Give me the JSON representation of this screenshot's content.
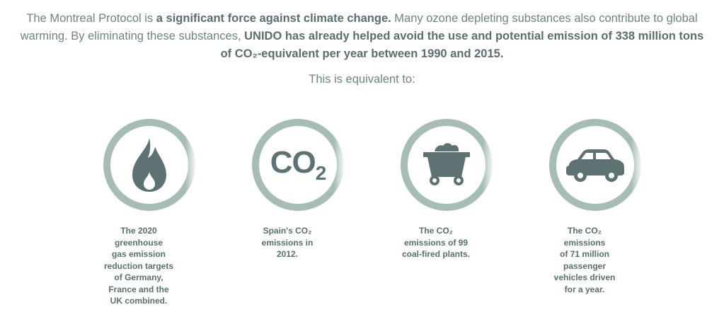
{
  "intro": {
    "p1": "The Montreal Protocol is ",
    "b1": "a significant force against climate change.",
    "p2": " Many ozone depleting substances also contribute to global warming. By eliminating these substances, ",
    "b2": "UNIDO has already helped avoid the use and potential emission of 338 million tons of CO₂-equivalent per year between 1990 and 2015."
  },
  "equivalent_label": "This is equivalent to:",
  "items": [
    {
      "icon": "flame-icon",
      "caption": [
        "The 2020",
        "greenhouse",
        "gas emission",
        "reduction targets",
        "of Germany,",
        "France and the",
        "UK combined."
      ]
    },
    {
      "icon": "co2-icon",
      "icon_text": "CO",
      "icon_sub": "2",
      "caption": [
        "Spain's CO₂",
        "emissions in",
        "2012."
      ]
    },
    {
      "icon": "coal-cart-icon",
      "caption": [
        "The CO₂",
        "emissions of 99",
        "coal-fired plants."
      ]
    },
    {
      "icon": "car-icon",
      "caption": [
        "The CO₂",
        "emissions",
        "of 71 million",
        "passenger",
        "vehicles driven",
        "for a year."
      ]
    }
  ],
  "colors": {
    "ring": "#a7bdb4",
    "icon": "#5f7273",
    "text": "#5b6e6f"
  }
}
